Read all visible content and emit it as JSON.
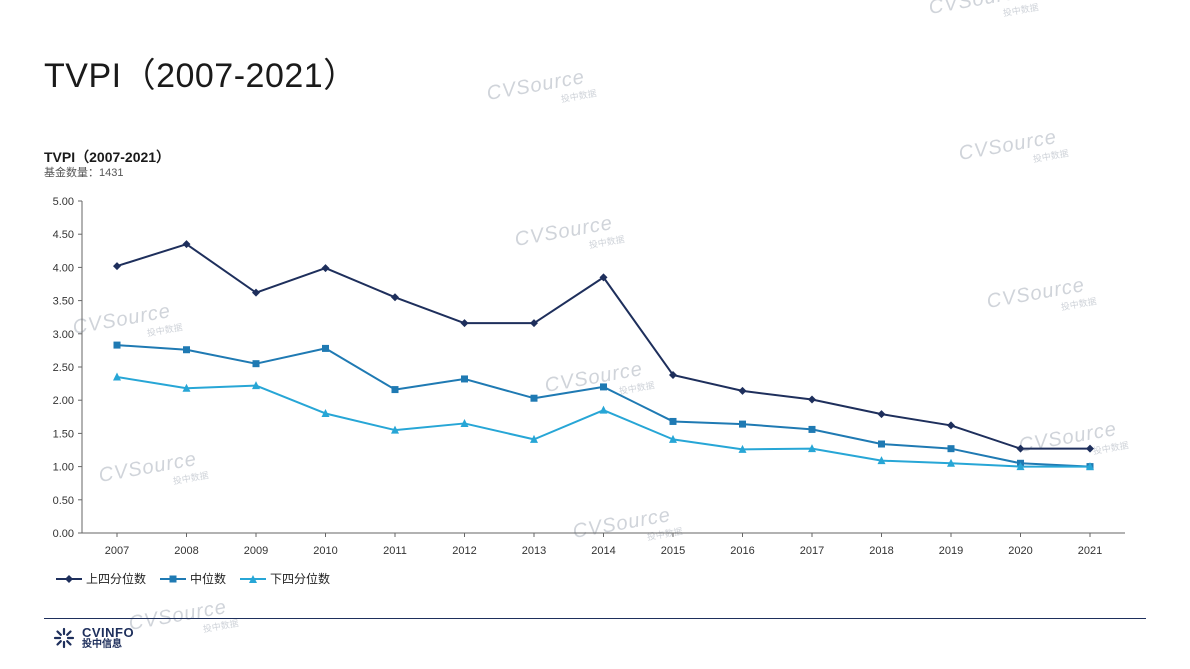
{
  "page": {
    "title": "TVPI（2007-2021）"
  },
  "colors": {
    "upper_quartile": "#1e2f5c",
    "median": "#1f7ab3",
    "lower_quartile": "#27a6d6",
    "axis": "#666666",
    "watermark": "#d0d4da"
  },
  "chart_data": {
    "type": "line",
    "title": "TVPI（2007-2021）",
    "subtitle": "基金数量：1431",
    "categories": [
      "2007",
      "2008",
      "2009",
      "2010",
      "2011",
      "2012",
      "2013",
      "2014",
      "2015",
      "2016",
      "2017",
      "2018",
      "2019",
      "2020",
      "2021"
    ],
    "ylim": [
      0,
      5
    ],
    "yticks": [
      "0.00",
      "0.50",
      "1.00",
      "1.50",
      "2.00",
      "2.50",
      "3.00",
      "3.50",
      "4.00",
      "4.50",
      "5.00"
    ],
    "grid": false,
    "legend_position": "bottom-left",
    "series": [
      {
        "name": "上四分位数",
        "marker": "diamond",
        "values": [
          4.02,
          4.35,
          3.62,
          3.99,
          3.55,
          3.16,
          3.16,
          3.85,
          2.38,
          2.14,
          2.01,
          1.79,
          1.62,
          1.27,
          1.27
        ]
      },
      {
        "name": "中位数",
        "marker": "square",
        "values": [
          2.83,
          2.76,
          2.55,
          2.78,
          2.16,
          2.32,
          2.03,
          2.2,
          1.68,
          1.64,
          1.56,
          1.34,
          1.27,
          1.05,
          1.0
        ]
      },
      {
        "name": "下四分位数",
        "marker": "triangle",
        "values": [
          2.35,
          2.18,
          2.22,
          1.8,
          1.55,
          1.65,
          1.41,
          1.85,
          1.41,
          1.26,
          1.27,
          1.09,
          1.05,
          1.0,
          1.0
        ]
      }
    ]
  },
  "legend": {
    "items": [
      "上四分位数",
      "中位数",
      "下四分位数"
    ]
  },
  "watermark": {
    "brand": "CVSource",
    "sub": "投中数据"
  },
  "footer": {
    "brand_name": "CVINFO",
    "brand_sub": "投中信息"
  }
}
